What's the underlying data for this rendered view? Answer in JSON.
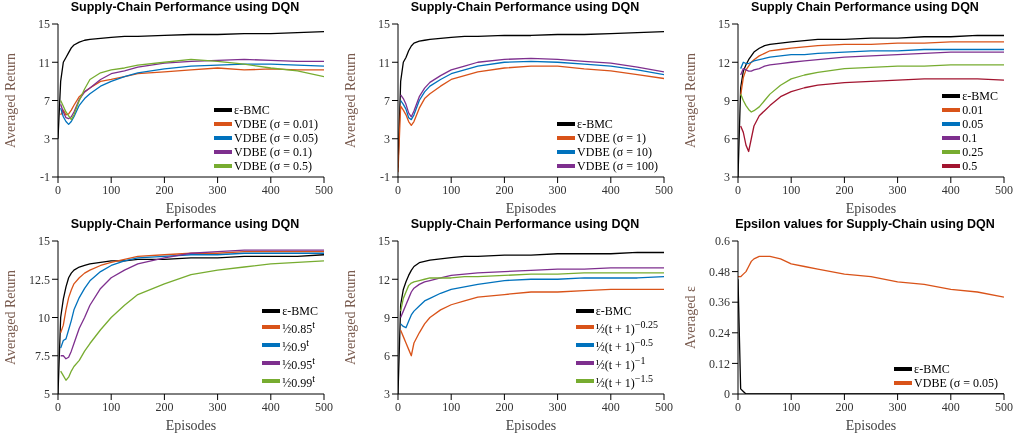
{
  "chart_data": [
    {
      "type": "line",
      "title": "Supply-Chain Performance using DQN",
      "xlabel": "Episodes",
      "ylabel": "Averaged Return",
      "legend": "bottom right",
      "xlim": [
        0,
        500
      ],
      "xticks": [
        0,
        100,
        200,
        300,
        400,
        500
      ],
      "ylim": [
        -1,
        15
      ],
      "yticks": [
        -1,
        3,
        7,
        11,
        15
      ],
      "x": [
        0,
        5,
        10,
        15,
        20,
        25,
        30,
        40,
        50,
        60,
        80,
        100,
        125,
        150,
        200,
        250,
        300,
        350,
        400,
        450,
        500
      ],
      "series": [
        {
          "name": "ε-BMC",
          "color": "#000000",
          "values": [
            3,
            9,
            11,
            11.5,
            12,
            12.5,
            12.8,
            13.1,
            13.3,
            13.4,
            13.5,
            13.6,
            13.7,
            13.7,
            13.8,
            13.9,
            13.9,
            14,
            14,
            14.1,
            14.2
          ]
        },
        {
          "name": "VDBE (σ = 0.01)",
          "color": "#d95319",
          "values": [
            null,
            5.5,
            6,
            5.5,
            5.6,
            6,
            6.5,
            7.4,
            7.9,
            8.3,
            9,
            9.2,
            9.5,
            9.8,
            10,
            10.2,
            10.4,
            10.2,
            10.3,
            10.2,
            10.2
          ]
        },
        {
          "name": "VDBE (σ = 0.05)",
          "color": "#0072bd",
          "values": [
            null,
            6.2,
            5.3,
            4.8,
            4.5,
            4.8,
            5.3,
            6.5,
            7.2,
            7.7,
            8.5,
            9,
            9.5,
            9.9,
            10.3,
            10.6,
            10.7,
            10.8,
            10.8,
            10.7,
            10.6
          ]
        },
        {
          "name": "VDBE (σ = 0.1)",
          "color": "#7e2f8e",
          "values": [
            null,
            6.6,
            5.8,
            5.2,
            5.1,
            5.3,
            5.8,
            7.1,
            7.9,
            8.3,
            9.2,
            9.8,
            10.1,
            10.5,
            10.9,
            11.1,
            11.2,
            11.3,
            11.2,
            11.1,
            11.1
          ]
        },
        {
          "name": "VDBE (σ = 0.5)",
          "color": "#77ac30",
          "values": [
            null,
            7,
            6.4,
            5.8,
            5.4,
            5,
            5.5,
            7,
            8.2,
            9.2,
            9.9,
            10.2,
            10.4,
            10.7,
            11,
            11.3,
            11.1,
            10.8,
            10.4,
            10.1,
            9.5
          ]
        }
      ]
    },
    {
      "type": "line",
      "title": "Supply-Chain Performance using DQN",
      "xlabel": "Episodes",
      "ylabel": "Averaged Return",
      "legend": "bottom right",
      "xlim": [
        0,
        500
      ],
      "xticks": [
        0,
        100,
        200,
        300,
        400,
        500
      ],
      "ylim": [
        -1,
        15
      ],
      "yticks": [
        -1,
        3,
        7,
        11,
        15
      ],
      "x": [
        0,
        5,
        10,
        15,
        20,
        25,
        30,
        40,
        50,
        60,
        80,
        100,
        125,
        150,
        200,
        250,
        300,
        350,
        400,
        450,
        500
      ],
      "series": [
        {
          "name": "ε-BMC",
          "color": "#000000",
          "values": [
            0,
            9,
            11,
            11.5,
            12.2,
            12.7,
            13,
            13.2,
            13.3,
            13.4,
            13.5,
            13.6,
            13.7,
            13.7,
            13.8,
            13.8,
            13.9,
            13.9,
            14,
            14.1,
            14.2
          ]
        },
        {
          "name": "VDBE (σ = 1)",
          "color": "#d95319",
          "values": [
            -0.5,
            6.4,
            6,
            5.5,
            4.8,
            4.4,
            4.8,
            6.2,
            7.2,
            7.7,
            8.5,
            9.2,
            9.6,
            10,
            10.4,
            10.6,
            10.6,
            10.3,
            10.1,
            9.7,
            9.3
          ]
        },
        {
          "name": "VDBE (σ = 10)",
          "color": "#0072bd",
          "values": [
            null,
            7,
            6.6,
            6.1,
            5.2,
            5,
            5.5,
            7,
            7.9,
            8.5,
            9.2,
            9.8,
            10.2,
            10.6,
            11,
            11.1,
            11,
            10.8,
            10.6,
            10.2,
            9.7
          ]
        },
        {
          "name": "VDBE (σ = 100)",
          "color": "#7e2f8e",
          "values": [
            null,
            7.6,
            7.2,
            6.6,
            5.7,
            5.3,
            5.9,
            7.4,
            8.3,
            8.9,
            9.6,
            10.2,
            10.6,
            11,
            11.3,
            11.4,
            11.3,
            11.1,
            10.9,
            10.5,
            10
          ]
        }
      ]
    },
    {
      "type": "line",
      "title": "Supply Chain Performance using DQN",
      "xlabel": "Episodes",
      "ylabel": "Averaged Return",
      "legend": "bottom right",
      "xlim": [
        0,
        500
      ],
      "xticks": [
        0,
        100,
        200,
        300,
        400,
        500
      ],
      "ylim": [
        3,
        15
      ],
      "yticks": [
        3,
        6,
        9,
        12,
        15
      ],
      "x": [
        0,
        5,
        10,
        15,
        20,
        25,
        30,
        40,
        50,
        60,
        80,
        100,
        125,
        150,
        200,
        250,
        300,
        350,
        400,
        450,
        500
      ],
      "series": [
        {
          "name": "ε-BMC",
          "color": "#000000",
          "values": [
            3,
            10,
            11.3,
            11.8,
            12.2,
            12.5,
            12.8,
            13.1,
            13.3,
            13.4,
            13.5,
            13.6,
            13.7,
            13.8,
            13.8,
            13.9,
            13.9,
            14,
            14,
            14.1,
            14.1
          ]
        },
        {
          "name": "0.01",
          "color": "#d95319",
          "values": [
            null,
            9.4,
            10.8,
            11.4,
            11.7,
            12,
            12.2,
            12.5,
            12.7,
            12.9,
            13,
            13.1,
            13.2,
            13.3,
            13.4,
            13.4,
            13.5,
            13.5,
            13.6,
            13.6,
            13.6
          ]
        },
        {
          "name": "0.05",
          "color": "#0072bd",
          "values": [
            null,
            11.5,
            12,
            11.9,
            11.9,
            12,
            12.1,
            12.2,
            12.3,
            12.4,
            12.5,
            12.6,
            12.6,
            12.7,
            12.8,
            12.9,
            12.9,
            13,
            13,
            13,
            13
          ]
        },
        {
          "name": "0.1",
          "color": "#7e2f8e",
          "values": [
            null,
            11,
            11.5,
            11.4,
            11.3,
            11.3,
            11.4,
            11.5,
            11.7,
            11.8,
            11.9,
            12,
            12.1,
            12.2,
            12.4,
            12.5,
            12.6,
            12.7,
            12.8,
            12.8,
            12.8
          ]
        },
        {
          "name": "0.25",
          "color": "#77ac30",
          "values": [
            null,
            9.5,
            9,
            8.6,
            8.3,
            8.1,
            8.2,
            8.5,
            9,
            9.5,
            10.2,
            10.7,
            11,
            11.2,
            11.5,
            11.6,
            11.7,
            11.7,
            11.8,
            11.8,
            11.8
          ]
        },
        {
          "name": "0.5",
          "color": "#a2142f",
          "values": [
            null,
            7,
            6.5,
            5.5,
            5,
            6,
            7,
            7.8,
            8.2,
            8.6,
            9.3,
            9.7,
            10,
            10.2,
            10.4,
            10.5,
            10.6,
            10.7,
            10.7,
            10.7,
            10.6
          ]
        }
      ]
    },
    {
      "type": "line",
      "title": "Supply-Chain Performance using DQN",
      "xlabel": "Episodes",
      "ylabel": "Averaged Return",
      "legend": "bottom right",
      "xlim": [
        0,
        500
      ],
      "xticks": [
        0,
        100,
        200,
        300,
        400,
        500
      ],
      "ylim": [
        5,
        15
      ],
      "yticks": [
        5,
        7.5,
        10,
        12.5,
        15
      ],
      "x": [
        0,
        5,
        10,
        15,
        20,
        25,
        30,
        40,
        50,
        60,
        80,
        100,
        125,
        150,
        200,
        250,
        300,
        350,
        400,
        450,
        500
      ],
      "series": [
        {
          "name": "ε-BMC",
          "color": "#000000",
          "values": [
            5,
            10,
            11.2,
            12,
            12.6,
            12.9,
            13.1,
            13.3,
            13.4,
            13.5,
            13.6,
            13.7,
            13.7,
            13.8,
            13.8,
            13.9,
            13.9,
            14,
            14,
            14,
            14.1
          ]
        },
        {
          "name": "½0.85$^{t}$",
          "color": "#d95319",
          "values": [
            null,
            9,
            9.5,
            10.5,
            11.3,
            11.8,
            12.2,
            12.6,
            12.9,
            13.1,
            13.4,
            13.6,
            13.8,
            14,
            14.1,
            14.2,
            14.2,
            14.3,
            14.3,
            14.3,
            14.3
          ]
        },
        {
          "name": "½0.9$^{t}$",
          "color": "#0072bd",
          "values": [
            null,
            8,
            8.5,
            8.6,
            9.2,
            9.8,
            10.5,
            11.3,
            11.9,
            12.4,
            13,
            13.4,
            13.7,
            13.9,
            14,
            14.1,
            14.1,
            14.2,
            14.2,
            14.2,
            14.2
          ]
        },
        {
          "name": "½0.95$^{t}$",
          "color": "#7e2f8e",
          "values": [
            null,
            7.5,
            7.5,
            7.3,
            7.4,
            7.8,
            8.3,
            9.3,
            10,
            10.8,
            11.9,
            12.6,
            13.1,
            13.5,
            13.9,
            14.2,
            14.3,
            14.4,
            14.4,
            14.4,
            14.4
          ]
        },
        {
          "name": "½0.99$^{t}$",
          "color": "#77ac30",
          "values": [
            null,
            6.5,
            6.2,
            5.9,
            6.1,
            6.5,
            6.8,
            7.2,
            7.8,
            8.3,
            9.2,
            10,
            10.8,
            11.5,
            12.2,
            12.8,
            13.1,
            13.3,
            13.5,
            13.6,
            13.7
          ]
        }
      ]
    },
    {
      "type": "line",
      "title": "Supply-Chain Performance using DQN",
      "xlabel": "Episodes",
      "ylabel": "Averaged Return",
      "legend": "bottom right",
      "xlim": [
        0,
        500
      ],
      "xticks": [
        0,
        100,
        200,
        300,
        400,
        500
      ],
      "ylim": [
        3,
        15
      ],
      "yticks": [
        3,
        6,
        9,
        12,
        15
      ],
      "x": [
        0,
        5,
        10,
        15,
        20,
        25,
        30,
        40,
        50,
        60,
        80,
        100,
        125,
        150,
        200,
        250,
        300,
        350,
        400,
        450,
        500
      ],
      "series": [
        {
          "name": "ε-BMC",
          "color": "#000000",
          "values": [
            3,
            10,
            11.2,
            11.8,
            12.3,
            12.7,
            13,
            13.3,
            13.4,
            13.5,
            13.6,
            13.7,
            13.8,
            13.8,
            13.9,
            13.9,
            14,
            14,
            14,
            14.1,
            14.1
          ]
        },
        {
          "name": "½(t + 1)$^{−0.25}$",
          "color": "#d95319",
          "values": [
            null,
            8,
            7.5,
            7,
            6.5,
            6,
            7,
            7.8,
            8.5,
            9,
            9.6,
            10,
            10.3,
            10.6,
            10.8,
            11,
            11,
            11.1,
            11.2,
            11.2,
            11.2
          ]
        },
        {
          "name": "½(t + 1)$^{−0.5}$",
          "color": "#0072bd",
          "values": [
            null,
            8.5,
            8.3,
            8.2,
            8.7,
            9.2,
            9.5,
            9.9,
            10.3,
            10.5,
            10.9,
            11.2,
            11.4,
            11.6,
            11.9,
            12,
            12,
            12.1,
            12.1,
            12.1,
            12.2
          ]
        },
        {
          "name": "½(t + 1)$^{−1}$",
          "color": "#7e2f8e",
          "values": [
            null,
            9,
            9.5,
            10,
            10.5,
            11,
            11.3,
            11.6,
            11.8,
            11.9,
            12.1,
            12.3,
            12.4,
            12.5,
            12.6,
            12.7,
            12.8,
            12.8,
            12.9,
            12.9,
            12.9
          ]
        },
        {
          "name": "½(t + 1)$^{−1.5}$",
          "color": "#77ac30",
          "values": [
            null,
            9.5,
            10.5,
            11,
            11.5,
            11.7,
            11.8,
            11.9,
            12,
            12.1,
            12.1,
            12.1,
            12.2,
            12.2,
            12.3,
            12.4,
            12.4,
            12.5,
            12.5,
            12.5,
            12.5
          ]
        }
      ]
    },
    {
      "type": "line",
      "title": "Epsilon values for Supply-Chain using DQN",
      "xlabel": "Episodes",
      "ylabel": "Averaged ε",
      "legend": "bottom right",
      "xlim": [
        0,
        500
      ],
      "xticks": [
        0,
        100,
        200,
        300,
        400,
        500
      ],
      "ylim": [
        0,
        0.6
      ],
      "yticks": [
        0,
        0.12,
        0.24,
        0.36,
        0.48,
        0.6
      ],
      "x": [
        0,
        5,
        10,
        15,
        20,
        25,
        30,
        40,
        50,
        60,
        80,
        100,
        125,
        150,
        200,
        250,
        300,
        350,
        400,
        450,
        500
      ],
      "series": [
        {
          "name": "ε-BMC",
          "color": "#000000",
          "values": [
            0.45,
            0.02,
            0.01,
            0,
            0,
            0,
            0,
            0,
            0,
            0,
            0,
            0,
            0,
            0,
            0,
            0,
            0,
            0,
            0,
            0,
            0
          ]
        },
        {
          "name": "VDBE (σ = 0.05)",
          "color": "#d95319",
          "values": [
            0.46,
            0.46,
            0.47,
            0.48,
            0.5,
            0.52,
            0.53,
            0.54,
            0.54,
            0.54,
            0.53,
            0.51,
            0.5,
            0.49,
            0.47,
            0.46,
            0.44,
            0.43,
            0.41,
            0.4,
            0.38
          ]
        }
      ]
    }
  ]
}
